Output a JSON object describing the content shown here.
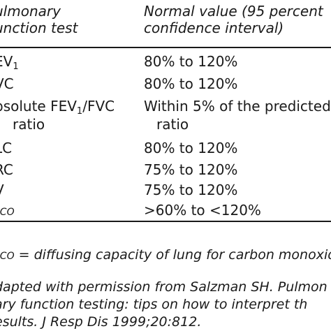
{
  "table": {
    "headers": {
      "col1_line1": "ulmonary",
      "col1_line2": "unction test",
      "col2_line1": "Normal value (95 percent",
      "col2_line2": "confidence interval)"
    },
    "rows": [
      {
        "test": "EV",
        "test_sub": "1",
        "value": "80% to 120%"
      },
      {
        "test": "VC",
        "value": "80% to 120%"
      },
      {
        "test": "bsolute FEV",
        "test_sub": "1",
        "test_suffix": "/FVC",
        "test_line2": "ratio",
        "value": "Within 5% of the predicted",
        "value_line2": "ratio"
      },
      {
        "test": "LC",
        "value": "80% to 120%"
      },
      {
        "test": "RC",
        "value": "75% to 120%"
      },
      {
        "test": "V",
        "value": "75% to 120%"
      },
      {
        "test": "LCO",
        "value": ">60% to <120%"
      }
    ]
  },
  "footnotes": {
    "dlco_abbrev": "LCO",
    "dlco_def": " = diffusing capacity of lung for carbon monoxide",
    "source_line1": "dapted with permission from Salzman SH. Pulmon",
    "source_line2": "ary function testing: tips on how to interpret th",
    "source_line3": "esults. J Resp Dis 1999;20:812."
  }
}
